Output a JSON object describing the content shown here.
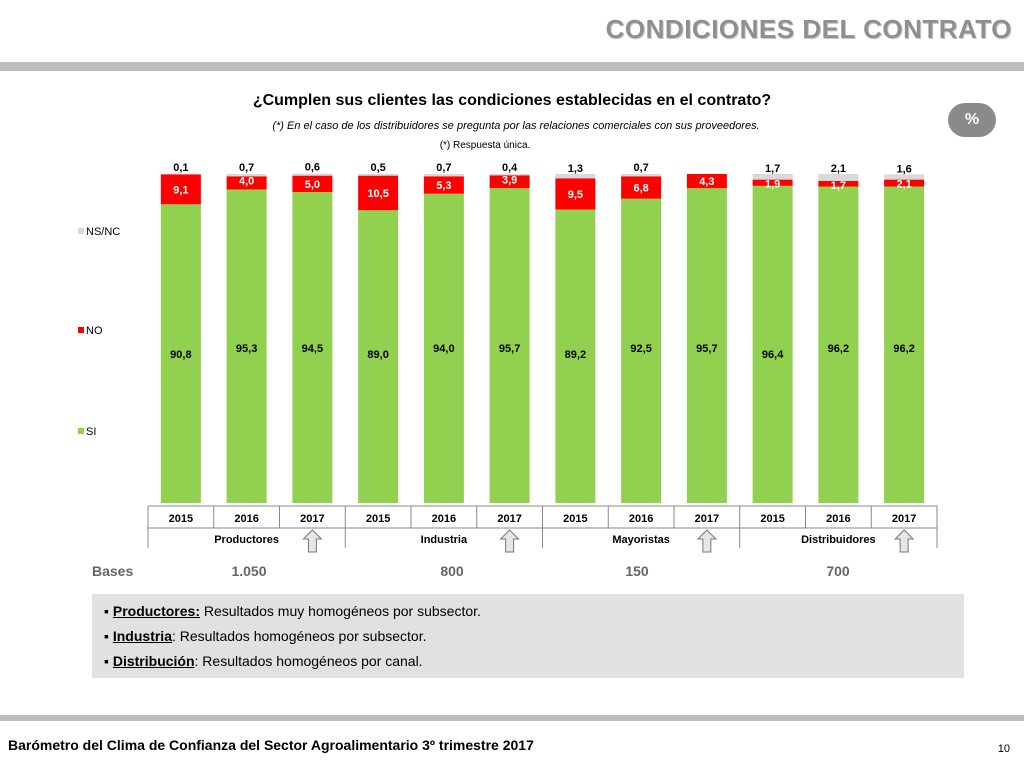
{
  "header": {
    "title": "CONDICIONES DEL CONTRATO"
  },
  "badge": {
    "label": "%"
  },
  "chart_data": {
    "type": "bar",
    "stacked": true,
    "title": "¿Cumplen sus clientes las condiciones establecidas en el contrato?",
    "notes": [
      "(*) En el caso de los distribuidores se pregunta por las relaciones comerciales con sus proveedores.",
      "(*) Respuesta única."
    ],
    "groups": [
      "Productores",
      "Industria",
      "Mayoristas",
      "Distribuidores"
    ],
    "categories": [
      "2015",
      "2016",
      "2017",
      "2015",
      "2016",
      "2017",
      "2015",
      "2016",
      "2017",
      "2015",
      "2016",
      "2017"
    ],
    "series": [
      {
        "name": "SI",
        "color": "#92d050",
        "values": [
          90.8,
          95.3,
          94.5,
          89.0,
          94.0,
          95.7,
          89.2,
          92.5,
          95.7,
          96.4,
          96.2,
          96.2
        ],
        "labels": [
          "90,8",
          "95,3",
          "94,5",
          "89,0",
          "94,0",
          "95,7",
          "89,2",
          "92,5",
          "95,7",
          "96,4",
          "96,2",
          "96,2"
        ]
      },
      {
        "name": "NO",
        "color": "#ff0000",
        "values": [
          9.1,
          4.0,
          5.0,
          10.5,
          5.3,
          3.9,
          9.5,
          6.8,
          4.3,
          1.9,
          1.7,
          2.1
        ],
        "labels": [
          "9,1",
          "4,0",
          "5,0",
          "10,5",
          "5,3",
          "3,9",
          "9,5",
          "6,8",
          "4,3",
          "1,9",
          "1,7",
          "2,1"
        ]
      },
      {
        "name": "NS/NC",
        "color": "#d9d9d9",
        "values": [
          0.1,
          0.7,
          0.6,
          0.5,
          0.7,
          0.4,
          1.3,
          0.7,
          null,
          1.7,
          2.1,
          1.6
        ],
        "labels": [
          "0,1",
          "0,7",
          "0,6",
          "0,5",
          "0,7",
          "0,4",
          "1,3",
          "0,7",
          "",
          "1,7",
          "2,1",
          "1,6"
        ]
      }
    ],
    "legend": [
      "NS/NC",
      "NO",
      "SI"
    ],
    "legend_position": "left",
    "up_arrows_after": [
      "Productores",
      "Industria",
      "Mayoristas",
      "Distribuidores"
    ]
  },
  "bases": {
    "label": "Bases",
    "values": [
      "1.050",
      "800",
      "150",
      "700"
    ]
  },
  "notes_box": [
    {
      "key": "Productores:",
      "text": " Resultados muy homogéneos por subsector."
    },
    {
      "key": "Industria",
      "text": ": Resultados homogéneos por subsector."
    },
    {
      "key": "Distribución",
      "text": ": Resultados homogéneos por canal."
    }
  ],
  "footer": {
    "text": "Barómetro del Clima de Confianza del Sector Agroalimentario 3º trimestre 2017",
    "page": "10"
  }
}
